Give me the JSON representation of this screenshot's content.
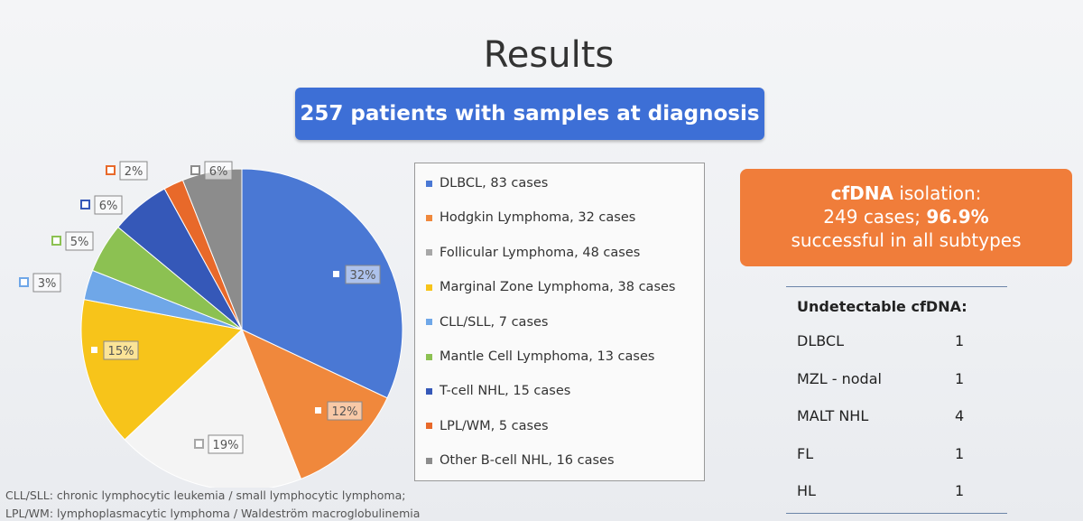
{
  "title": "Results",
  "banner": "257 patients with samples at diagnosis",
  "chart_data": {
    "type": "pie",
    "title": "",
    "slices": [
      {
        "label": "DLBCL, 83 cases",
        "value": 32,
        "color": "#4a78d4",
        "pct_label": "32%"
      },
      {
        "label": "Hodgkin Lymphoma, 32 cases",
        "value": 12,
        "color": "#f0883c",
        "pct_label": "12%"
      },
      {
        "label": "Follicular Lymphoma, 48 cases",
        "value": 19,
        "color": "#f4f4f4",
        "pct_label": "19%"
      },
      {
        "label": "Marginal Zone Lymphoma, 38 cases",
        "value": 15,
        "color": "#f7c41a",
        "pct_label": "15%"
      },
      {
        "label": "CLL/SLL, 7 cases",
        "value": 3,
        "color": "#6fa7e8",
        "pct_label": "3%"
      },
      {
        "label": "Mantle Cell Lymphoma, 13 cases",
        "value": 5,
        "color": "#8cc152",
        "pct_label": "5%"
      },
      {
        "label": "T-cell NHL, 15 cases",
        "value": 6,
        "color": "#3558b8",
        "pct_label": "6%"
      },
      {
        "label": "LPL/WM, 5 cases",
        "value": 2,
        "color": "#e8692a",
        "pct_label": "2%"
      },
      {
        "label": "Other B-cell NHL, 16 cases",
        "value": 6,
        "color": "#8c8c8c",
        "pct_label": "6%"
      }
    ],
    "legend_swatch_colors": [
      "#4a78d4",
      "#f0883c",
      "#a7a7a7",
      "#f7c41a",
      "#6fa7e8",
      "#8cc152",
      "#3558b8",
      "#e8692a",
      "#8c8c8c"
    ],
    "legend_placement": "right"
  },
  "cfdna": {
    "line1_bold": "cfDNA",
    "line1_rest": " isolation:",
    "line2_rest": "249 cases; ",
    "line2_bold": "96.9%",
    "line3": "successful in all subtypes"
  },
  "undetectable": {
    "title": "Undetectable cfDNA:",
    "rows": [
      {
        "label": "DLBCL",
        "value": "1"
      },
      {
        "label": "MZL - nodal",
        "value": "1"
      },
      {
        "label": "MALT NHL",
        "value": "4"
      },
      {
        "label": "FL",
        "value": "1"
      },
      {
        "label": "HL",
        "value": "1"
      }
    ]
  },
  "footnotes": [
    "CLL/SLL: chronic lymphocytic leukemia / small lymphocytic lymphoma;",
    "LPL/WM: lymphoplasmacytic lymphoma / Waldeström macroglobulinemia"
  ]
}
